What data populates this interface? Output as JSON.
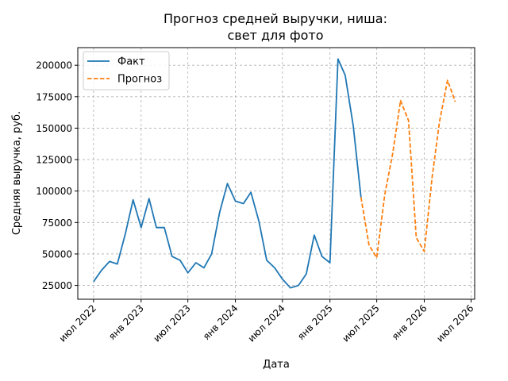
{
  "chart_data": {
    "type": "line",
    "title": "Прогноз средней выручки, ниша:\nсвет для фото",
    "xlabel": "Дата",
    "ylabel": "Средняя выручка, руб.",
    "grid": true,
    "legend_position": "top-left",
    "xlim": [
      "2022-05-01",
      "2026-07-15"
    ],
    "ylim": [
      14000,
      214000
    ],
    "x_ticks": [
      {
        "date": "2022-07-01",
        "label": "июл 2022"
      },
      {
        "date": "2023-01-01",
        "label": "янв 2023"
      },
      {
        "date": "2023-07-01",
        "label": "июл 2023"
      },
      {
        "date": "2024-01-01",
        "label": "янв 2024"
      },
      {
        "date": "2024-07-01",
        "label": "июл 2024"
      },
      {
        "date": "2025-01-01",
        "label": "янв 2025"
      },
      {
        "date": "2025-07-01",
        "label": "июл 2025"
      },
      {
        "date": "2026-01-01",
        "label": "янв 2026"
      },
      {
        "date": "2026-07-01",
        "label": "июл 2026"
      }
    ],
    "y_ticks": [
      25000,
      50000,
      75000,
      100000,
      125000,
      150000,
      175000,
      200000
    ],
    "series": [
      {
        "name": "Факт",
        "color": "#1f77b4",
        "style": "solid",
        "x": [
          "2022-07-01",
          "2022-08-01",
          "2022-09-01",
          "2022-10-01",
          "2022-11-01",
          "2022-12-01",
          "2023-01-01",
          "2023-02-01",
          "2023-03-01",
          "2023-04-01",
          "2023-05-01",
          "2023-06-01",
          "2023-07-01",
          "2023-08-01",
          "2023-09-01",
          "2023-10-01",
          "2023-11-01",
          "2023-12-01",
          "2024-01-01",
          "2024-02-01",
          "2024-03-01",
          "2024-04-01",
          "2024-05-01",
          "2024-06-01",
          "2024-07-01",
          "2024-08-01",
          "2024-09-01",
          "2024-10-01",
          "2024-11-01",
          "2024-12-01",
          "2025-01-01",
          "2025-02-01",
          "2025-03-01",
          "2025-04-01",
          "2025-05-01"
        ],
        "y": [
          28000,
          37000,
          44000,
          42000,
          66000,
          93000,
          71000,
          94000,
          71000,
          71000,
          48000,
          45000,
          35000,
          43000,
          39000,
          50000,
          83000,
          106000,
          92000,
          90000,
          99000,
          76000,
          45000,
          39000,
          30000,
          23000,
          25000,
          34000,
          65000,
          48000,
          43000,
          205000,
          192000,
          152000,
          95000
        ]
      },
      {
        "name": "Прогноз",
        "color": "#ff7f0e",
        "style": "dashed",
        "x": [
          "2025-05-01",
          "2025-06-01",
          "2025-07-01",
          "2025-08-01",
          "2025-09-01",
          "2025-10-01",
          "2025-11-01",
          "2025-12-01",
          "2026-01-01",
          "2026-02-01",
          "2026-03-01",
          "2026-04-01",
          "2026-05-01"
        ],
        "y": [
          95000,
          57000,
          47000,
          97000,
          130000,
          172000,
          156000,
          63000,
          52000,
          112000,
          155000,
          188000,
          171000
        ]
      }
    ]
  }
}
